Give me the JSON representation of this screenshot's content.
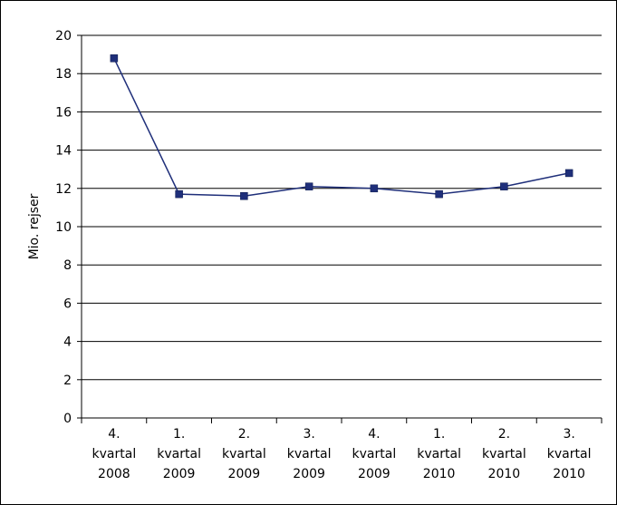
{
  "chart_data": {
    "type": "line",
    "title": "",
    "xlabel": "",
    "ylabel": "Mio. rejser",
    "ylim": [
      0,
      20
    ],
    "yticks": [
      0,
      2,
      4,
      6,
      8,
      10,
      12,
      14,
      16,
      18,
      20
    ],
    "grid": true,
    "legend": "none",
    "categories": [
      [
        "4.",
        "kvartal",
        "2008"
      ],
      [
        "1.",
        "kvartal",
        "2009"
      ],
      [
        "2.",
        "kvartal",
        "2009"
      ],
      [
        "3.",
        "kvartal",
        "2009"
      ],
      [
        "4.",
        "kvartal",
        "2009"
      ],
      [
        "1.",
        "kvartal",
        "2010"
      ],
      [
        "2.",
        "kvartal",
        "2010"
      ],
      [
        "3.",
        "kvartal",
        "2010"
      ]
    ],
    "series": [
      {
        "values": [
          18.8,
          11.7,
          11.6,
          12.1,
          12.0,
          11.7,
          12.1,
          12.8
        ],
        "color": "#1F2F7A",
        "marker": "square"
      }
    ]
  }
}
